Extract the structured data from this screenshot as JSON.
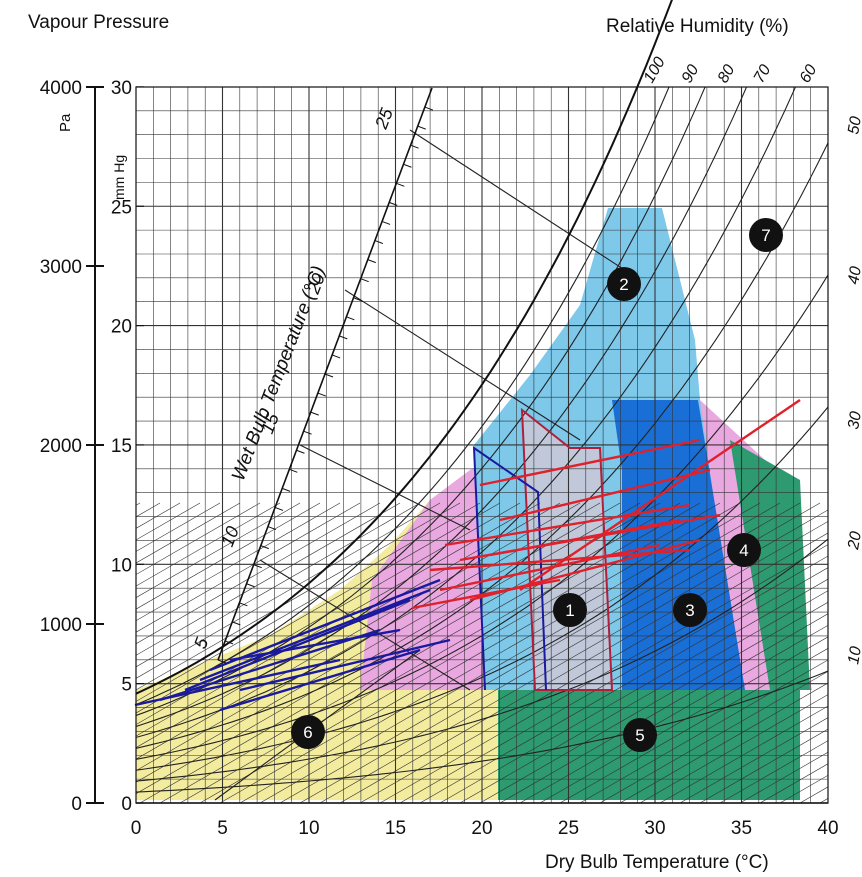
{
  "header": {
    "left_label": "Vapour Pressure",
    "right_label": "Relative Humidity (%)"
  },
  "axes": {
    "pa_unit": "Pa",
    "mmhg_unit": "mm Hg",
    "x_title": "Dry Bulb Temperature (°C)",
    "wet_bulb_title": "Wet Bulb Temperature (°C)",
    "pa_ticks": [
      "0",
      "1000",
      "2000",
      "3000",
      "4000"
    ],
    "mmhg_ticks": [
      "0",
      "5",
      "10",
      "15",
      "20",
      "25",
      "30"
    ],
    "x_ticks": [
      "0",
      "5",
      "10",
      "15",
      "20",
      "25",
      "30",
      "35",
      "40"
    ],
    "wet_bulb_ticks": [
      "5",
      "10",
      "15",
      "20",
      "25"
    ],
    "rh_top_ticks": [
      "100",
      "90",
      "80",
      "70",
      "60"
    ],
    "rh_right_ticks": [
      "50",
      "40",
      "30",
      "20",
      "10"
    ]
  },
  "zones": [
    {
      "id": "1",
      "label": "1",
      "color": "#c8c8d8"
    },
    {
      "id": "2",
      "label": "2",
      "color": "#7ec8ea"
    },
    {
      "id": "3",
      "label": "3",
      "color": "#1a6fd6"
    },
    {
      "id": "4",
      "label": "4",
      "color": "#eaa8e0"
    },
    {
      "id": "5",
      "label": "5",
      "color": "#2e9a70"
    },
    {
      "id": "6",
      "label": "6",
      "color": "#f3ec9e"
    },
    {
      "id": "7",
      "label": "7",
      "color": "#ffffff"
    }
  ],
  "colors": {
    "red_lines": "#e0202a",
    "blue_lines": "#1a1aa0",
    "grid": "#222222"
  }
}
